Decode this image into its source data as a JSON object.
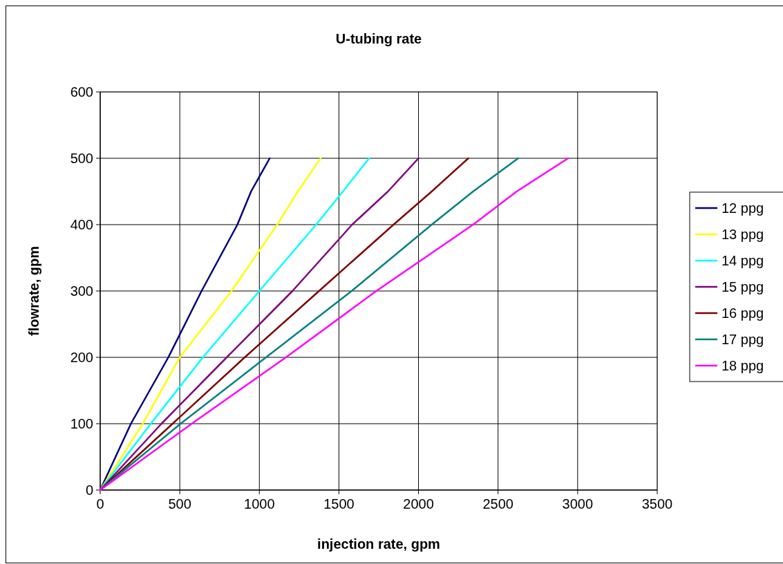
{
  "chart_data": {
    "type": "line",
    "title": "U-tubing rate",
    "xlabel": "injection rate, gpm",
    "ylabel": "flowrate, gpm",
    "xlim": [
      0,
      3500
    ],
    "xticks": [
      0,
      500,
      1000,
      1500,
      2000,
      2500,
      3000,
      3500
    ],
    "ylim": [
      0,
      600
    ],
    "yticks": [
      0,
      100,
      200,
      300,
      400,
      500,
      600
    ],
    "grid": true,
    "legend": "right",
    "marker": "none",
    "line_style": "solid",
    "series": [
      {
        "name": "12 ppg",
        "color": "#000080",
        "x": [
          0,
          193,
          428,
          637,
          862,
          948,
          1065
        ],
        "values": [
          0,
          100,
          200,
          300,
          400,
          450,
          500
        ]
      },
      {
        "name": "13 ppg",
        "color": "#ffff00",
        "x": [
          0,
          268,
          500,
          825,
          1112,
          1242,
          1385
        ],
        "values": [
          0,
          100,
          200,
          300,
          400,
          450,
          500
        ]
      },
      {
        "name": "14 ppg",
        "color": "#00ffff",
        "x": [
          0,
          318,
          645,
          1000,
          1357,
          1525,
          1690
        ],
        "values": [
          0,
          100,
          200,
          300,
          400,
          450,
          500
        ]
      },
      {
        "name": "15 ppg",
        "color": "#800080",
        "x": [
          0,
          385,
          795,
          1208,
          1583,
          1808,
          2000
        ],
        "values": [
          0,
          100,
          200,
          300,
          400,
          450,
          500
        ]
      },
      {
        "name": "16 ppg",
        "color": "#800000",
        "x": [
          0,
          455,
          908,
          1375,
          1843,
          2083,
          2313
        ],
        "values": [
          0,
          100,
          200,
          300,
          400,
          450,
          500
        ]
      },
      {
        "name": "17 ppg",
        "color": "#008080",
        "x": [
          0,
          505,
          1042,
          1580,
          2083,
          2343,
          2626
        ],
        "values": [
          0,
          100,
          200,
          300,
          400,
          450,
          500
        ]
      },
      {
        "name": "18 ppg",
        "color": "#ff00ff",
        "x": [
          0,
          575,
          1167,
          1735,
          2343,
          2617,
          2940
        ],
        "values": [
          0,
          100,
          200,
          300,
          400,
          450,
          500
        ]
      }
    ]
  }
}
